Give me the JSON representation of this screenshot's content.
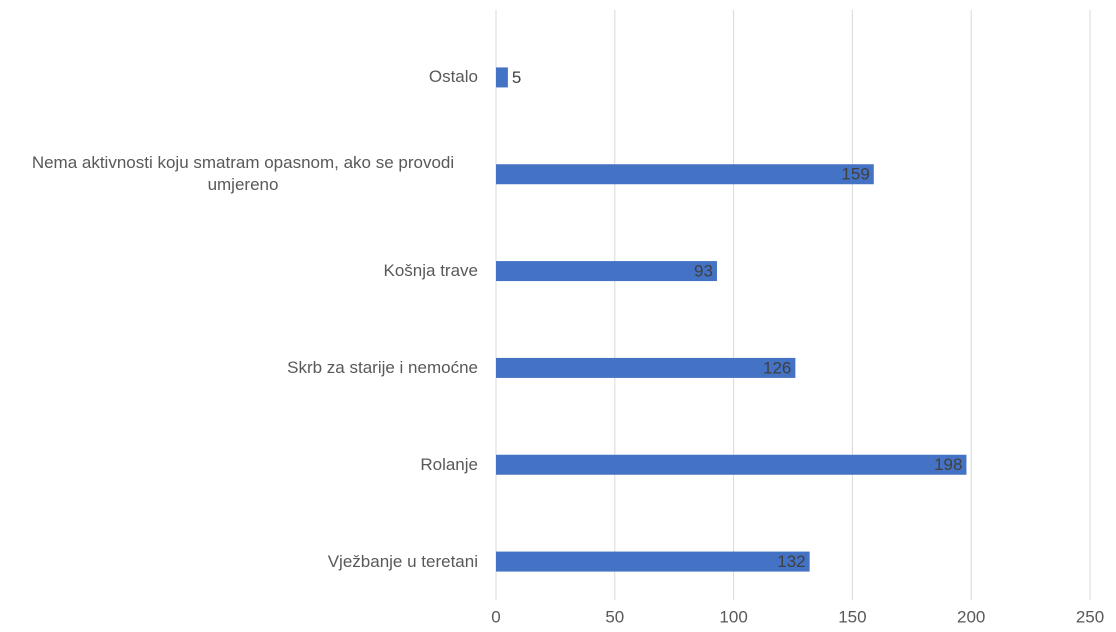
{
  "chart_data": {
    "type": "bar",
    "orientation": "horizontal",
    "categories": [
      "Ostalo",
      "Nema aktivnosti koju smatram opasnom, ako se provodi umjereno",
      "Košnja trave",
      "Skrb za starije i nemoćne",
      "Rolanje",
      "Vježbanje u teretani"
    ],
    "values": [
      5,
      159,
      93,
      126,
      198,
      132
    ],
    "color": "#4472c4",
    "xlim": [
      0,
      250
    ],
    "xticks": [
      0,
      50,
      100,
      150,
      200,
      250
    ],
    "grid": true
  }
}
